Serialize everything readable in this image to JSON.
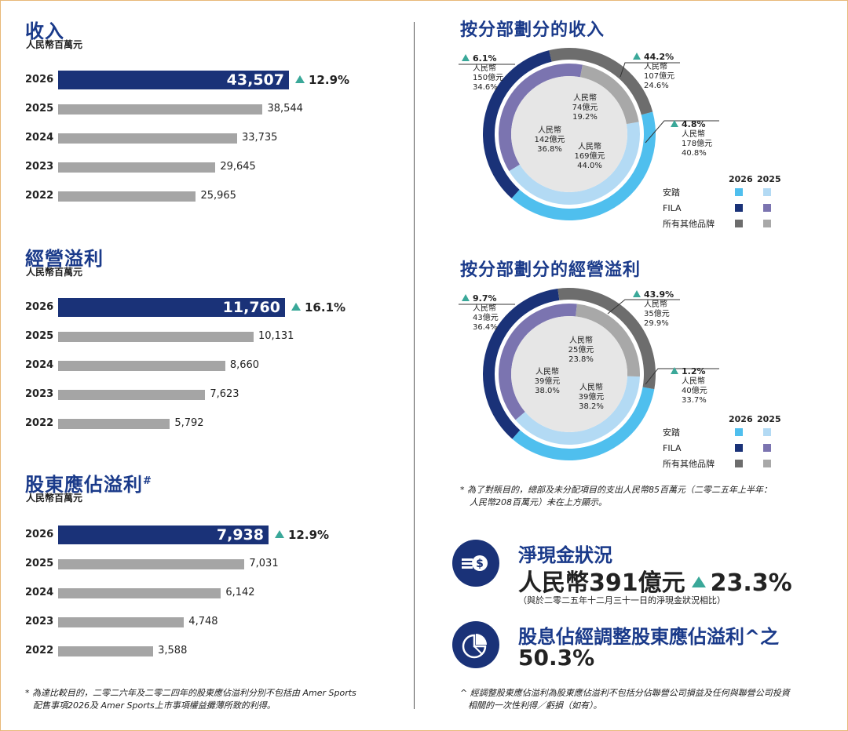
{
  "colors": {
    "navy": "#1a3278",
    "grey_bar": "#a5a5a5",
    "growth_arrow": "#3aa899",
    "anta_2026": "#4fbfee",
    "anta_2025": "#b3daf4",
    "fila_2026": "#1a3278",
    "fila_2025": "#7b74b0",
    "others_2026": "#6d6d6d",
    "others_2025": "#a8a8a8"
  },
  "chart_data": [
    {
      "type": "bar",
      "orientation": "horizontal",
      "title": "收入",
      "unit": "人民幣百萬元",
      "categories": [
        "2026",
        "2025",
        "2024",
        "2023",
        "2022"
      ],
      "values": [
        43507,
        38544,
        33735,
        29645,
        25965
      ],
      "value_labels": [
        "43,507",
        "38,544",
        "33,735",
        "29,645",
        "25,965"
      ],
      "growth": "12.9%",
      "title_note": ""
    },
    {
      "type": "bar",
      "orientation": "horizontal",
      "title": "經營溢利",
      "unit": "人民幣百萬元",
      "categories": [
        "2026",
        "2025",
        "2024",
        "2023",
        "2022"
      ],
      "values": [
        11760,
        10131,
        8660,
        7623,
        5792
      ],
      "value_labels": [
        "11,760",
        "10,131",
        "8,660",
        "7,623",
        "5,792"
      ],
      "growth": "16.1%",
      "title_note": ""
    },
    {
      "type": "bar",
      "orientation": "horizontal",
      "title": "股東應佔溢利",
      "unit": "人民幣百萬元",
      "categories": [
        "2026",
        "2025",
        "2024",
        "2023",
        "2022"
      ],
      "values": [
        7938,
        7031,
        6142,
        4748,
        3588
      ],
      "value_labels": [
        "7,938",
        "7,031",
        "6,142",
        "4,748",
        "3,588"
      ],
      "growth": "12.9%",
      "title_note": "#"
    },
    {
      "type": "pie",
      "variant": "double-donut",
      "title": "按分部劃分的收入",
      "legend": {
        "years": [
          "2026",
          "2025"
        ],
        "entries": [
          "安踏",
          "FILA",
          "所有其他品牌"
        ]
      },
      "series": [
        {
          "name": "2026",
          "slices": [
            {
              "label": "安踏",
              "value": 40.8,
              "growth": "4.8%",
              "amount": "人民幣",
              "amount2": "178億元",
              "pct": "40.8%"
            },
            {
              "label": "FILA",
              "value": 34.6,
              "growth": "6.1%",
              "amount": "人民幣",
              "amount2": "150億元",
              "pct": "34.6%"
            },
            {
              "label": "所有其他品牌",
              "value": 24.6,
              "growth": "44.2%",
              "amount": "人民幣",
              "amount2": "107億元",
              "pct": "24.6%"
            }
          ]
        },
        {
          "name": "2025",
          "slices": [
            {
              "label": "安踏",
              "value": 44.0,
              "amount": "人民幣",
              "amount2": "169億元",
              "pct": "44.0%"
            },
            {
              "label": "FILA",
              "value": 36.8,
              "amount": "人民幣",
              "amount2": "142億元",
              "pct": "36.8%"
            },
            {
              "label": "所有其他品牌",
              "value": 19.2,
              "amount": "人民幣",
              "amount2": "74億元",
              "pct": "19.2%"
            }
          ]
        }
      ]
    },
    {
      "type": "pie",
      "variant": "double-donut",
      "title": "按分部劃分的經營溢利",
      "legend": {
        "years": [
          "2026",
          "2025"
        ],
        "entries": [
          "安踏",
          "FILA",
          "所有其他品牌"
        ]
      },
      "series": [
        {
          "name": "2026",
          "slices": [
            {
              "label": "安踏",
              "value": 33.7,
              "growth": "1.2%",
              "amount": "人民幣",
              "amount2": "40億元",
              "pct": "33.7%"
            },
            {
              "label": "FILA",
              "value": 36.4,
              "growth": "9.7%",
              "amount": "人民幣",
              "amount2": "43億元",
              "pct": "36.4%"
            },
            {
              "label": "所有其他品牌",
              "value": 29.9,
              "growth": "43.9%",
              "amount": "人民幣",
              "amount2": "35億元",
              "pct": "29.9%"
            }
          ]
        },
        {
          "name": "2025",
          "slices": [
            {
              "label": "安踏",
              "value": 38.2,
              "amount": "人民幣",
              "amount2": "39億元",
              "pct": "38.2%"
            },
            {
              "label": "FILA",
              "value": 38.0,
              "amount": "人民幣",
              "amount2": "39億元",
              "pct": "38.0%"
            },
            {
              "label": "所有其他品牌",
              "value": 23.8,
              "amount": "人民幣",
              "amount2": "25億元",
              "pct": "23.8%"
            }
          ]
        }
      ]
    }
  ],
  "footnotes": {
    "profit": [
      "*  為達比較目的，二零二六年及二零二四年的股東應佔溢利分別不包括由 Amer Sports",
      "配售事項2026及 Amer Sports上市事項權益攤薄所致的利得。"
    ],
    "segment": [
      "*  為了對賬目的，總部及未分配項目的支出人民幣85百萬元（二零二五年上半年：",
      "人民幣208百萬元）未在上方顯示。"
    ],
    "payout": [
      "^ 經調整股東應佔溢利為股東應佔溢利不包括分佔聯營公司損益及任何與聯營公司投資",
      "相關的一次性利得／虧損（如有）。"
    ]
  },
  "net_cash": {
    "icon": "cash-dollar-icon",
    "title": "淨現金狀況",
    "value": "人民幣391億元",
    "growth": "23.3%",
    "note": "（與於二零二五年十二月三十一日的淨現金狀況相比）"
  },
  "payout": {
    "icon": "pie-chart-icon",
    "title": "股息佔經調整股東應佔溢利^之",
    "value": "50.3%"
  }
}
